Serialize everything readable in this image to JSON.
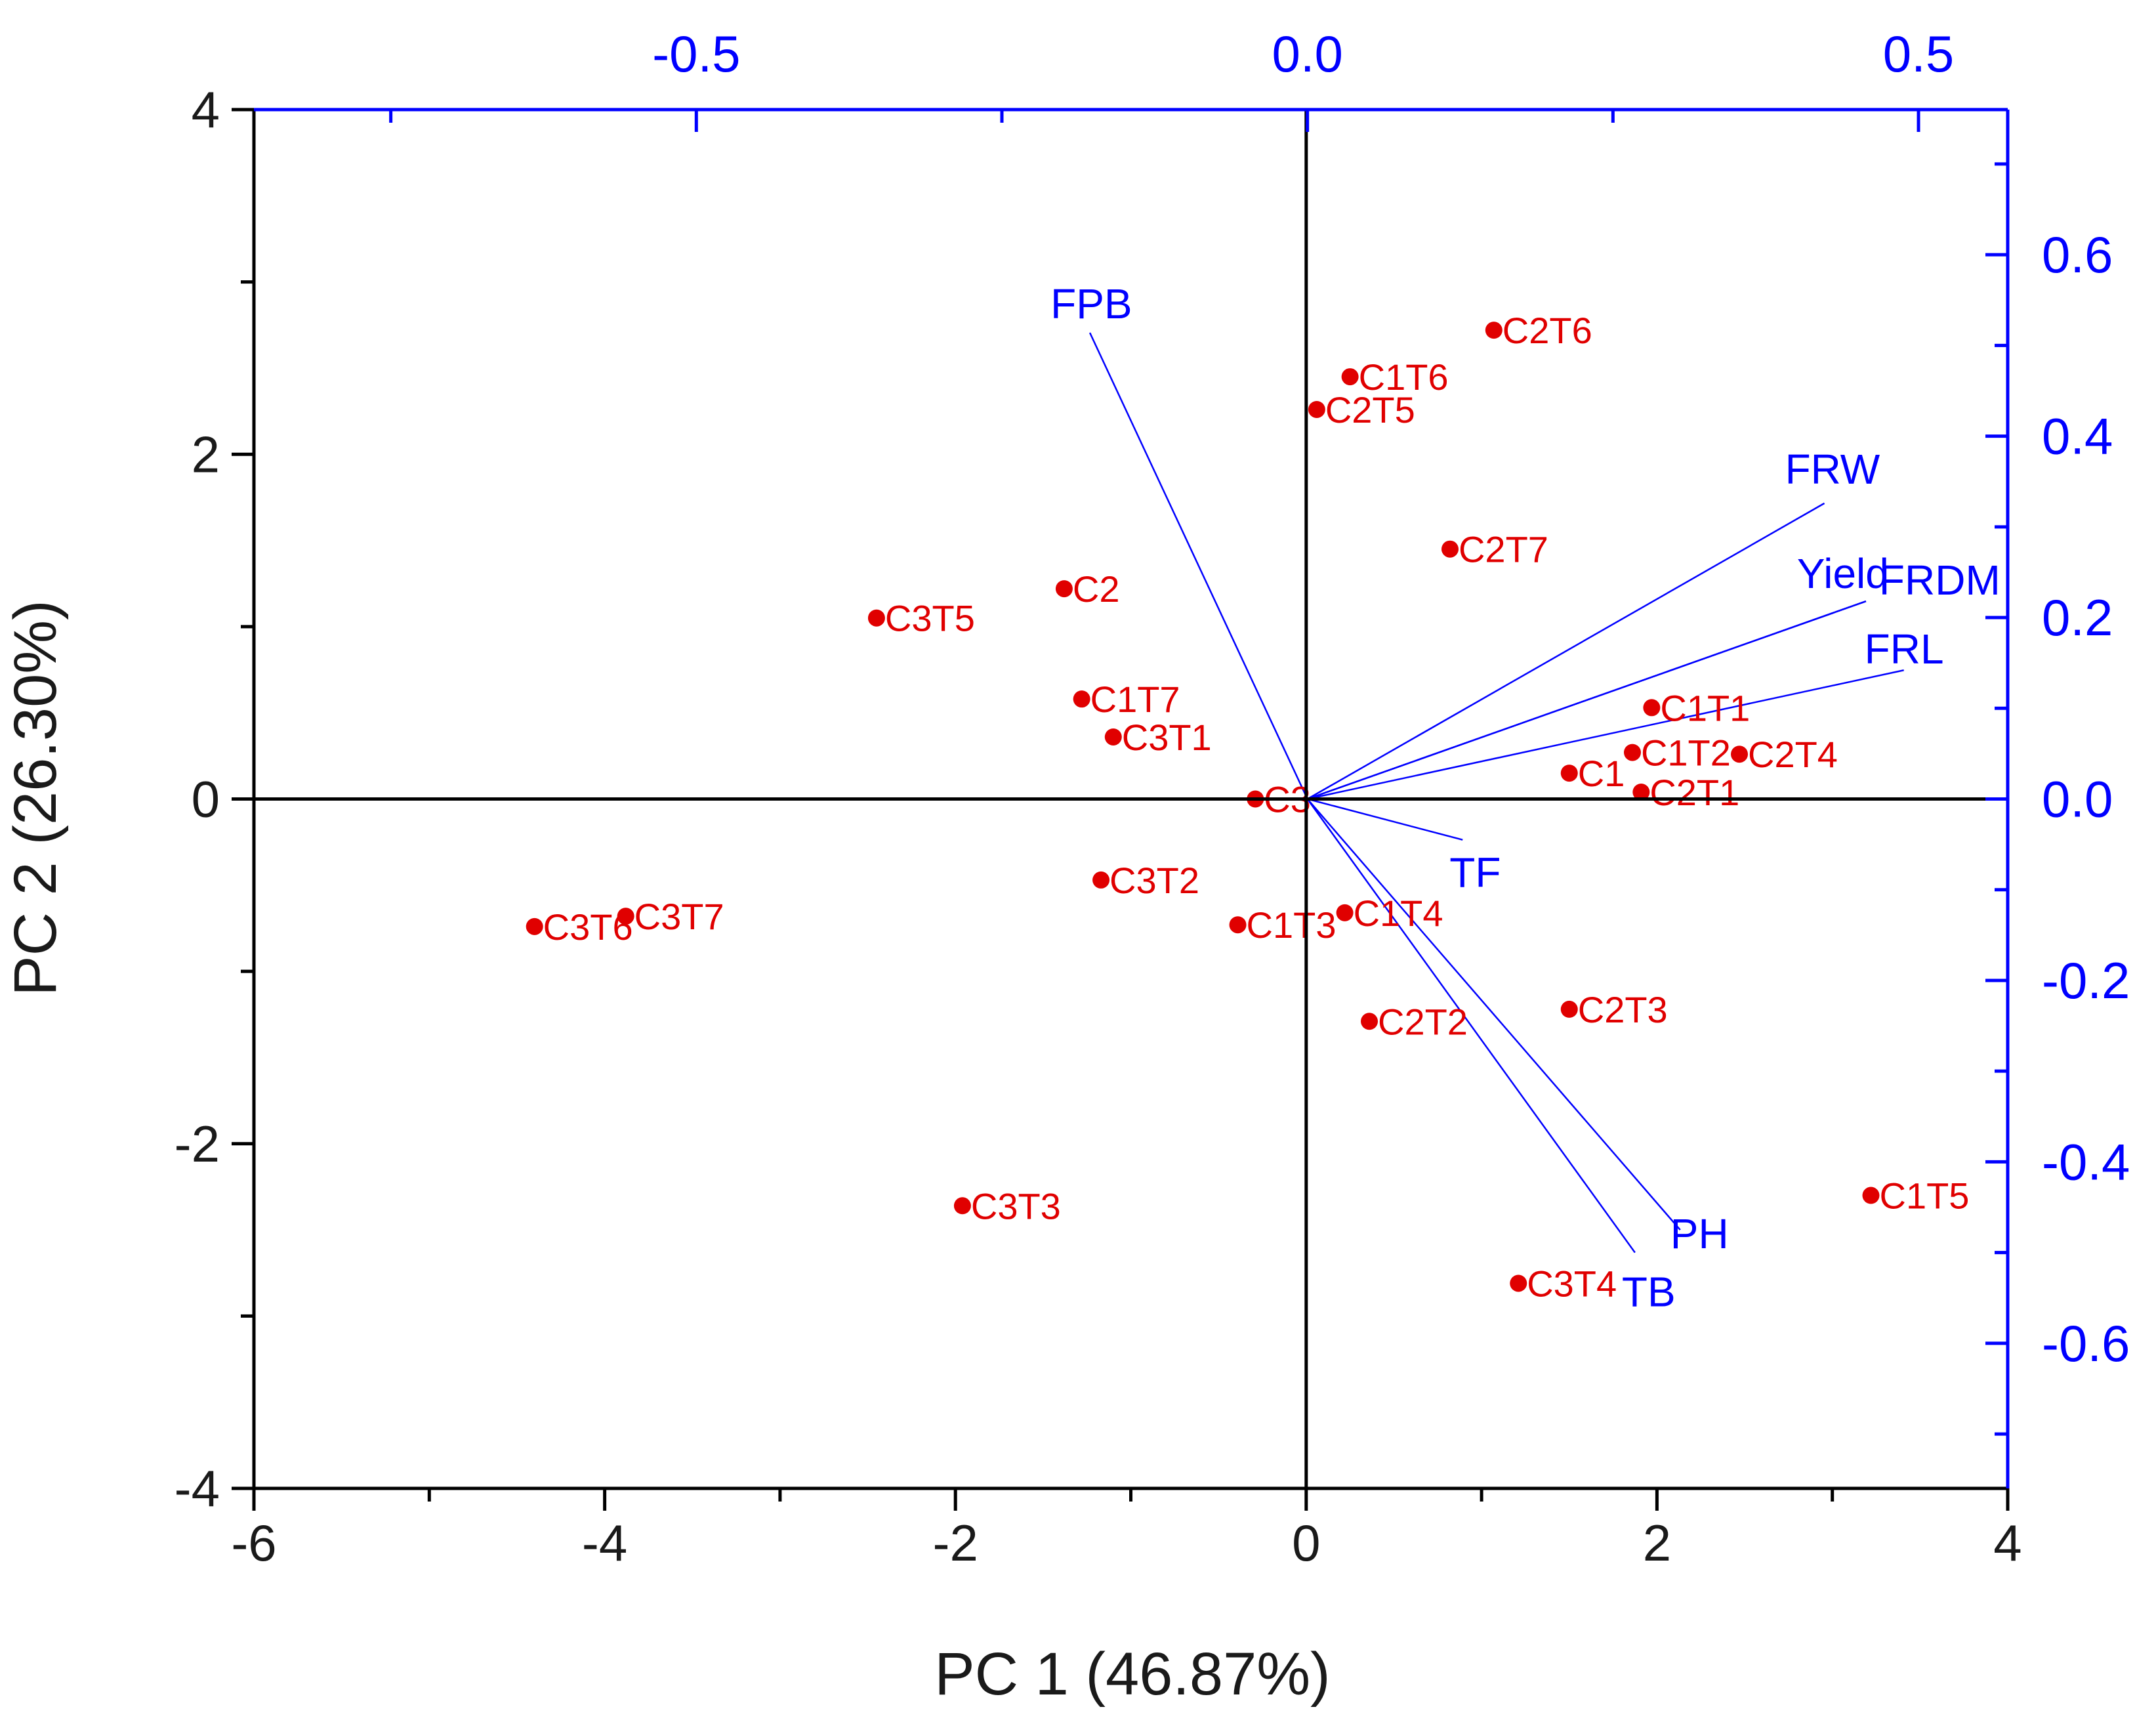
{
  "chart_data": {
    "type": "scatter",
    "subtype": "pca-biplot",
    "xlabel": "PC 1 (46.87%)",
    "ylabel": "PC 2 (26.30%)",
    "xlim": [
      -6,
      4
    ],
    "ylim": [
      -4,
      4
    ],
    "x_ticks": [
      "-6",
      "-4",
      "-2",
      "0",
      "2",
      "4"
    ],
    "y_ticks": [
      "-4",
      "-2",
      "0",
      "2",
      "4"
    ],
    "top_axis": {
      "range": [
        -0.862,
        0.573
      ],
      "ticks": [
        "-0.5",
        "0.0",
        "0.5"
      ]
    },
    "right_axis": {
      "range": [
        -0.76,
        0.76
      ],
      "ticks": [
        "0.6",
        "0.4",
        "0.2",
        "0.0",
        "-0.2",
        "-0.4",
        "-0.6"
      ]
    },
    "colors": {
      "scores": "#e00000",
      "loadings": "#0000ff",
      "axes": "#000000"
    },
    "scores": [
      {
        "label": "C2T6",
        "x": 1.07,
        "y": 2.72
      },
      {
        "label": "C1T6",
        "x": 0.25,
        "y": 2.45
      },
      {
        "label": "C2T5",
        "x": 0.06,
        "y": 2.26
      },
      {
        "label": "C2T7",
        "x": 0.82,
        "y": 1.45
      },
      {
        "label": "C2",
        "x": -1.38,
        "y": 1.22
      },
      {
        "label": "C3T5",
        "x": -2.45,
        "y": 1.05
      },
      {
        "label": "C1T7",
        "x": -1.28,
        "y": 0.58
      },
      {
        "label": "C3T1",
        "x": -1.1,
        "y": 0.36
      },
      {
        "label": "C1T1",
        "x": 1.97,
        "y": 0.53
      },
      {
        "label": "C1T2",
        "x": 1.86,
        "y": 0.27
      },
      {
        "label": "C2T4",
        "x": 2.47,
        "y": 0.26
      },
      {
        "label": "C1",
        "x": 1.5,
        "y": 0.15
      },
      {
        "label": "C2T1",
        "x": 1.91,
        "y": 0.04
      },
      {
        "label": "C3",
        "x": -0.29,
        "y": 0.0
      },
      {
        "label": "C3T2",
        "x": -1.17,
        "y": -0.47
      },
      {
        "label": "C1T4",
        "x": 0.22,
        "y": -0.66
      },
      {
        "label": "C1T3",
        "x": -0.39,
        "y": -0.73
      },
      {
        "label": "C3T7",
        "x": -3.88,
        "y": -0.68
      },
      {
        "label": "C3T6",
        "x": -4.4,
        "y": -0.74
      },
      {
        "label": "C2T2",
        "x": 0.36,
        "y": -1.29
      },
      {
        "label": "C2T3",
        "x": 1.5,
        "y": -1.22
      },
      {
        "label": "C1T5",
        "x": 3.22,
        "y": -2.3
      },
      {
        "label": "C3T3",
        "x": -1.96,
        "y": -2.36
      },
      {
        "label": "C3T4",
        "x": 1.21,
        "y": -2.81
      }
    ],
    "loadings": [
      {
        "label": "FPB",
        "x": -0.178,
        "y": 0.514
      },
      {
        "label": "FRW",
        "x": 0.423,
        "y": 0.326
      },
      {
        "label": "Yield",
        "x": 0.457,
        "y": 0.218
      },
      {
        "label": "FRDM",
        "x": 0.457,
        "y": 0.218
      },
      {
        "label": "FRL",
        "x": 0.488,
        "y": 0.142
      },
      {
        "label": "TF",
        "x": 0.127,
        "y": -0.045
      },
      {
        "label": "PH",
        "x": 0.305,
        "y": -0.475
      },
      {
        "label": "TB",
        "x": 0.268,
        "y": -0.5
      }
    ]
  }
}
